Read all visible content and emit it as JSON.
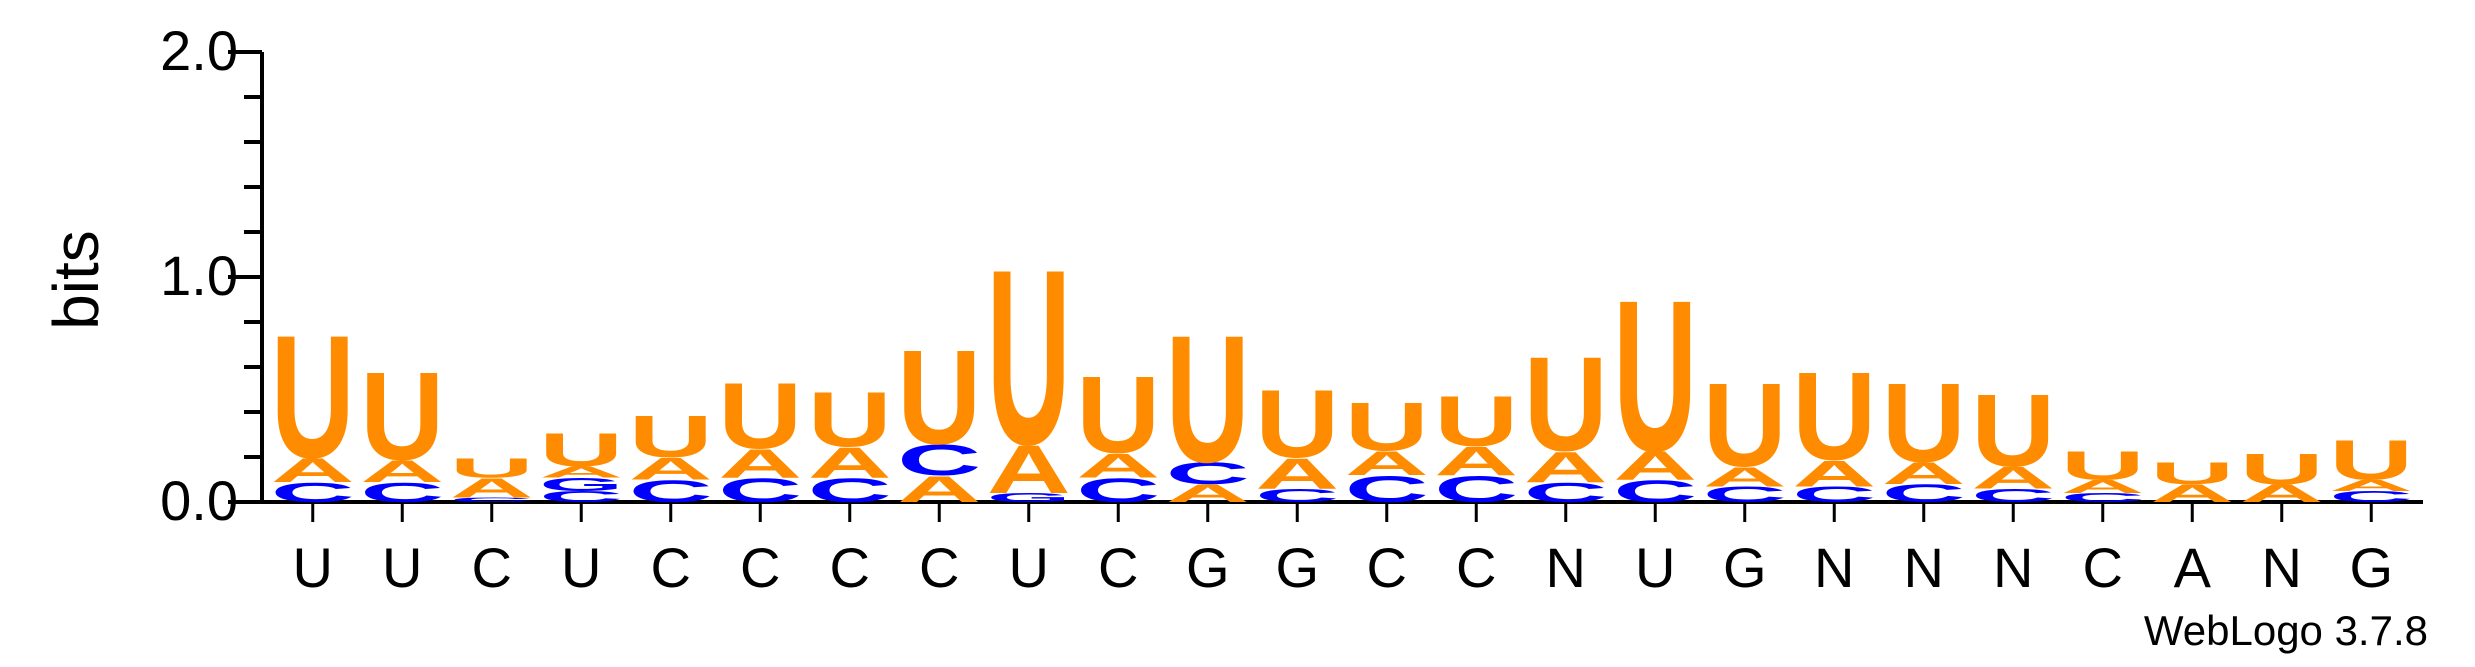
{
  "chart_data": {
    "type": "sequence-logo",
    "ylabel": "bits",
    "ylim": [
      0,
      2.0
    ],
    "yticks": [
      "0.0",
      "1.0",
      "2.0"
    ],
    "footer": "WebLogo 3.7.8",
    "colors": {
      "U": "#ff8c00",
      "A": "#ff8c00",
      "C": "#0000ff",
      "G": "#0000ff"
    },
    "positions": [
      {
        "label": "U",
        "stack": [
          {
            "l": "C",
            "h": 0.09
          },
          {
            "l": "A",
            "h": 0.11
          },
          {
            "l": "U",
            "h": 0.56
          }
        ]
      },
      {
        "label": "U",
        "stack": [
          {
            "l": "C",
            "h": 0.09
          },
          {
            "l": "A",
            "h": 0.1
          },
          {
            "l": "U",
            "h": 0.4
          }
        ]
      },
      {
        "label": "C",
        "stack": [
          {
            "l": "C",
            "h": 0.02
          },
          {
            "l": "A",
            "h": 0.09
          },
          {
            "l": "U",
            "h": 0.09
          }
        ]
      },
      {
        "label": "U",
        "stack": [
          {
            "l": "C",
            "h": 0.05
          },
          {
            "l": "G",
            "h": 0.06
          },
          {
            "l": "A",
            "h": 0.05
          },
          {
            "l": "U",
            "h": 0.15
          }
        ]
      },
      {
        "label": "C",
        "stack": [
          {
            "l": "C",
            "h": 0.1
          },
          {
            "l": "A",
            "h": 0.1
          },
          {
            "l": "U",
            "h": 0.19
          }
        ]
      },
      {
        "label": "C",
        "stack": [
          {
            "l": "C",
            "h": 0.11
          },
          {
            "l": "A",
            "h": 0.13
          },
          {
            "l": "U",
            "h": 0.3
          }
        ]
      },
      {
        "label": "C",
        "stack": [
          {
            "l": "C",
            "h": 0.11
          },
          {
            "l": "A",
            "h": 0.14
          },
          {
            "l": "U",
            "h": 0.25
          }
        ]
      },
      {
        "label": "C",
        "stack": [
          {
            "l": "A",
            "h": 0.12
          },
          {
            "l": "C",
            "h": 0.14
          },
          {
            "l": "U",
            "h": 0.43
          }
        ]
      },
      {
        "label": "U",
        "stack": [
          {
            "l": "G",
            "h": 0.04
          },
          {
            "l": "A",
            "h": 0.22
          },
          {
            "l": "U",
            "h": 0.8
          }
        ]
      },
      {
        "label": "C",
        "stack": [
          {
            "l": "C",
            "h": 0.11
          },
          {
            "l": "A",
            "h": 0.11
          },
          {
            "l": "U",
            "h": 0.35
          }
        ]
      },
      {
        "label": "G",
        "stack": [
          {
            "l": "A",
            "h": 0.08
          },
          {
            "l": "C",
            "h": 0.1
          },
          {
            "l": "U",
            "h": 0.58
          }
        ]
      },
      {
        "label": "G",
        "stack": [
          {
            "l": "C",
            "h": 0.06
          },
          {
            "l": "A",
            "h": 0.14
          },
          {
            "l": "U",
            "h": 0.31
          }
        ]
      },
      {
        "label": "C",
        "stack": [
          {
            "l": "C",
            "h": 0.12
          },
          {
            "l": "A",
            "h": 0.11
          },
          {
            "l": "U",
            "h": 0.22
          }
        ]
      },
      {
        "label": "C",
        "stack": [
          {
            "l": "C",
            "h": 0.12
          },
          {
            "l": "A",
            "h": 0.13
          },
          {
            "l": "U",
            "h": 0.23
          }
        ]
      },
      {
        "label": "N",
        "stack": [
          {
            "l": "C",
            "h": 0.09
          },
          {
            "l": "A",
            "h": 0.14
          },
          {
            "l": "U",
            "h": 0.43
          }
        ]
      },
      {
        "label": "U",
        "stack": [
          {
            "l": "C",
            "h": 0.1
          },
          {
            "l": "A",
            "h": 0.13
          },
          {
            "l": "U",
            "h": 0.69
          }
        ]
      },
      {
        "label": "G",
        "stack": [
          {
            "l": "C",
            "h": 0.07
          },
          {
            "l": "A",
            "h": 0.09
          },
          {
            "l": "U",
            "h": 0.38
          }
        ]
      },
      {
        "label": "N",
        "stack": [
          {
            "l": "C",
            "h": 0.07
          },
          {
            "l": "A",
            "h": 0.12
          },
          {
            "l": "U",
            "h": 0.4
          }
        ]
      },
      {
        "label": "N",
        "stack": [
          {
            "l": "C",
            "h": 0.08
          },
          {
            "l": "A",
            "h": 0.1
          },
          {
            "l": "U",
            "h": 0.36
          }
        ]
      },
      {
        "label": "N",
        "stack": [
          {
            "l": "C",
            "h": 0.06
          },
          {
            "l": "A",
            "h": 0.1
          },
          {
            "l": "U",
            "h": 0.33
          }
        ]
      },
      {
        "label": "C",
        "stack": [
          {
            "l": "C",
            "h": 0.04
          },
          {
            "l": "A",
            "h": 0.06
          },
          {
            "l": "U",
            "h": 0.13
          }
        ]
      },
      {
        "label": "A",
        "stack": [
          {
            "l": "A",
            "h": 0.08
          },
          {
            "l": "U",
            "h": 0.1
          }
        ]
      },
      {
        "label": "N",
        "stack": [
          {
            "l": "A",
            "h": 0.08
          },
          {
            "l": "U",
            "h": 0.14
          }
        ]
      },
      {
        "label": "G",
        "stack": [
          {
            "l": "C",
            "h": 0.05
          },
          {
            "l": "A",
            "h": 0.05
          },
          {
            "l": "U",
            "h": 0.18
          }
        ]
      }
    ]
  }
}
